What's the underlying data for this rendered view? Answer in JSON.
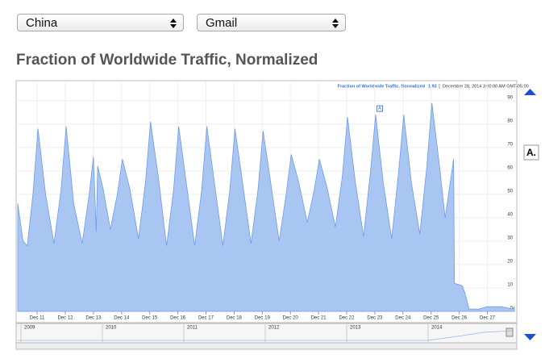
{
  "controls": {
    "region": "China",
    "product": "Gmail"
  },
  "heading": "Fraction of Worldwide Traffic, Normalized",
  "chart_data": {
    "type": "area",
    "legend_value": 1.93,
    "legend_date": "December 28, 2014 3:00:00 AM GMT-05:00",
    "x": [
      10.31,
      10.5,
      10.65,
      10.85,
      11.03,
      11.3,
      11.6,
      11.85,
      12.03,
      12.3,
      12.6,
      12.85,
      13.0,
      13.1,
      13.15,
      13.35,
      13.6,
      13.85,
      14.03,
      14.3,
      14.6,
      14.85,
      15.03,
      15.3,
      15.6,
      15.85,
      16.03,
      16.3,
      16.6,
      16.85,
      17.03,
      17.3,
      17.6,
      17.85,
      18.03,
      18.3,
      18.6,
      18.85,
      19.03,
      19.3,
      19.6,
      19.85,
      20.03,
      20.3,
      20.6,
      20.85,
      21.03,
      21.3,
      21.6,
      21.85,
      22.03,
      22.3,
      22.6,
      22.85,
      23.03,
      23.3,
      23.6,
      23.85,
      24.03,
      24.3,
      24.6,
      24.85,
      25.03,
      25.3,
      25.5,
      25.8,
      25.83,
      26.1,
      26.2,
      26.35,
      26.7,
      27.0,
      27.5,
      27.9,
      27.96
    ],
    "series": [
      {
        "name": "Fraction of Worldwide Traffic, Normalized",
        "color": "#a9c6f3",
        "values": [
          46,
          30,
          28,
          50,
          78,
          50,
          29,
          52,
          79,
          46,
          29,
          50,
          66,
          34,
          62,
          52,
          35,
          50,
          65,
          52,
          31,
          55,
          81,
          58,
          28,
          52,
          79,
          55,
          28,
          52,
          79,
          55,
          28,
          52,
          78,
          55,
          29,
          52,
          77,
          55,
          30,
          50,
          67,
          55,
          38,
          52,
          65,
          53,
          36,
          58,
          83,
          56,
          32,
          60,
          84,
          55,
          31,
          60,
          84,
          55,
          33,
          62,
          89,
          62,
          40,
          65,
          12,
          11,
          8,
          1,
          1,
          2,
          2,
          1,
          2
        ]
      }
    ],
    "xlim": [
      10.31,
      27.96
    ],
    "ylim": [
      0,
      93
    ],
    "xticks": [
      {
        "value": 11,
        "label": "Dec 11"
      },
      {
        "value": 12,
        "label": "Dec 12"
      },
      {
        "value": 13,
        "label": "Dec 13"
      },
      {
        "value": 14,
        "label": "Dec 14"
      },
      {
        "value": 15,
        "label": "Dec 15"
      },
      {
        "value": 16,
        "label": "Dec 16"
      },
      {
        "value": 17,
        "label": "Dec 17"
      },
      {
        "value": 18,
        "label": "Dec 18"
      },
      {
        "value": 19,
        "label": "Dec 19"
      },
      {
        "value": 20,
        "label": "Dec 20"
      },
      {
        "value": 21,
        "label": "Dec 21"
      },
      {
        "value": 22,
        "label": "Dec 22"
      },
      {
        "value": 23,
        "label": "Dec 23"
      },
      {
        "value": 24,
        "label": "Dec 24"
      },
      {
        "value": 25,
        "label": "Dec 25"
      },
      {
        "value": 26,
        "label": "Dec 26"
      },
      {
        "value": 27,
        "label": "Dec 27"
      }
    ],
    "yticks": [
      0,
      10,
      20,
      30,
      40,
      50,
      60,
      70,
      80,
      90
    ],
    "grid": true,
    "annotations": [
      {
        "label": "A",
        "x": 23.16,
        "y": 84
      }
    ],
    "annotation_list": [
      "A."
    ],
    "navigator_years": [
      "2009",
      "2010",
      "2011",
      "2012",
      "2013",
      "2014"
    ]
  }
}
